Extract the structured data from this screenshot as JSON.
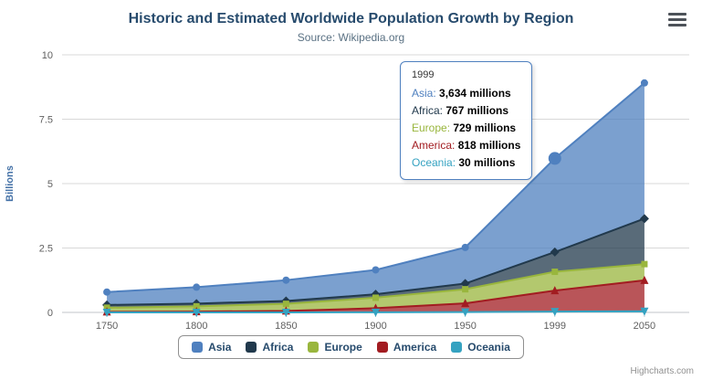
{
  "header": {
    "title": "Historic and Estimated Worldwide Population Growth by Region",
    "subtitle": "Source: Wikipedia.org"
  },
  "chart_data": {
    "type": "area",
    "stacking": "normal",
    "unit": "millions",
    "categories": [
      "1750",
      "1800",
      "1850",
      "1900",
      "1950",
      "1999",
      "2050"
    ],
    "series": [
      {
        "name": "Asia",
        "color": "#4F80BF",
        "marker": "circle",
        "values": [
          502,
          635,
          809,
          947,
          1402,
          3634,
          5268
        ]
      },
      {
        "name": "Africa",
        "color": "#21394C",
        "marker": "diamond",
        "values": [
          106,
          107,
          111,
          133,
          221,
          767,
          1766
        ]
      },
      {
        "name": "Europe",
        "color": "#99B63D",
        "marker": "square",
        "values": [
          163,
          203,
          276,
          408,
          547,
          729,
          628
        ]
      },
      {
        "name": "America",
        "color": "#A21C21",
        "marker": "triangle",
        "values": [
          18,
          31,
          54,
          156,
          339,
          818,
          1201
        ]
      },
      {
        "name": "Oceania",
        "color": "#35A2C1",
        "marker": "triangle-down",
        "values": [
          2,
          2,
          2,
          6,
          13,
          30,
          46
        ]
      }
    ],
    "ylabel": "Billions",
    "xlabel": "",
    "yticks": [
      0,
      2.5,
      5,
      7.5,
      10
    ],
    "ylim": [
      0,
      10
    ],
    "value_divisor": 1000,
    "grid": true,
    "legend_position": "bottom"
  },
  "tooltip": {
    "category": "1999",
    "rows": [
      {
        "series": "Asia",
        "value": "3,634 millions"
      },
      {
        "series": "Africa",
        "value": "767 millions"
      },
      {
        "series": "Europe",
        "value": "729 millions"
      },
      {
        "series": "America",
        "value": "818 millions"
      },
      {
        "series": "Oceania",
        "value": "30 millions"
      }
    ],
    "border_color": "#4F80BF"
  },
  "hover_point": {
    "series": "Asia",
    "category": "1999"
  },
  "credits": "Highcharts.com"
}
